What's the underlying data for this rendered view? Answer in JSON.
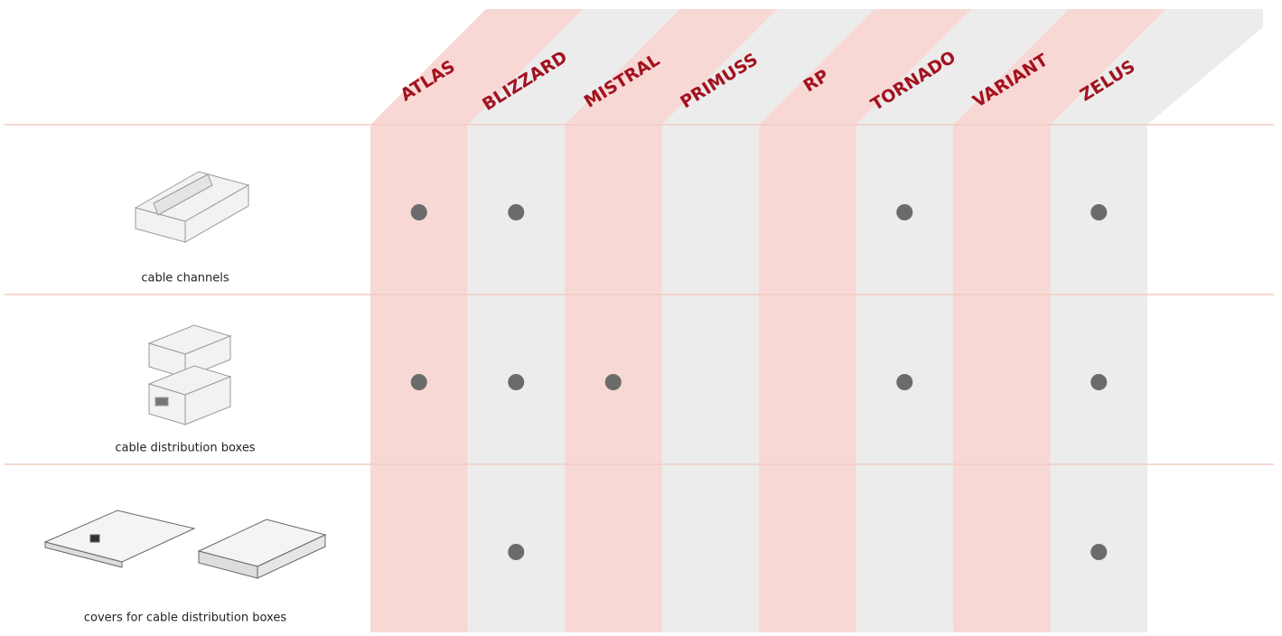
{
  "table": {
    "columns": [
      "ATLAS",
      "BLIZZARD",
      "MISTRAL",
      "PRIMUSS",
      "RP",
      "TORNADO",
      "VARIANT",
      "ZELUS"
    ],
    "rows": [
      {
        "label": "cable channels",
        "available": [
          true,
          true,
          false,
          false,
          false,
          true,
          false,
          true
        ]
      },
      {
        "label": "cable distribution boxes",
        "available": [
          true,
          true,
          true,
          false,
          false,
          true,
          false,
          true
        ]
      },
      {
        "label": "covers for cable distribution boxes",
        "available": [
          false,
          true,
          false,
          false,
          false,
          false,
          false,
          true
        ]
      }
    ]
  }
}
